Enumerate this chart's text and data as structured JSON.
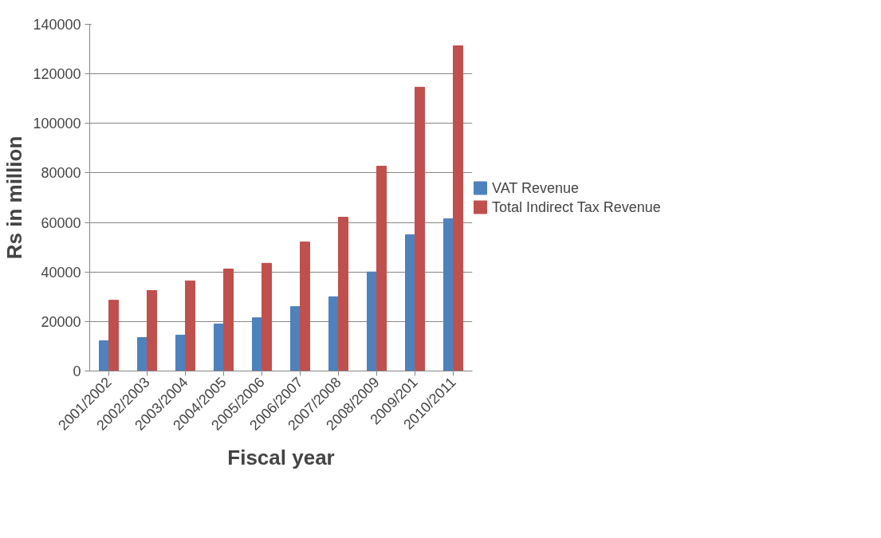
{
  "chart_data": {
    "type": "bar",
    "xlabel": "Fiscal year",
    "ylabel": "Rs in million",
    "categories": [
      "2001/2002",
      "2002/2003",
      "2003/2004",
      "2004/2005",
      "2005/2006",
      "2006/2007",
      "2007/2008",
      "2008/2009",
      "2009/201",
      "2010/2011"
    ],
    "series": [
      {
        "name": "VAT Revenue",
        "color": "#4f81bd",
        "values": [
          12200,
          13500,
          14500,
          19000,
          21500,
          26000,
          30000,
          40000,
          55000,
          61500
        ]
      },
      {
        "name": "Total Indirect Tax Revenue",
        "color": "#c0504d",
        "values": [
          28600,
          32500,
          36400,
          41200,
          43500,
          52100,
          62100,
          82700,
          114600,
          131300
        ]
      }
    ],
    "ylim": [
      0,
      140000
    ],
    "yticks": [
      0,
      20000,
      40000,
      60000,
      80000,
      100000,
      120000,
      140000
    ],
    "grid": "y",
    "legend": "right"
  }
}
